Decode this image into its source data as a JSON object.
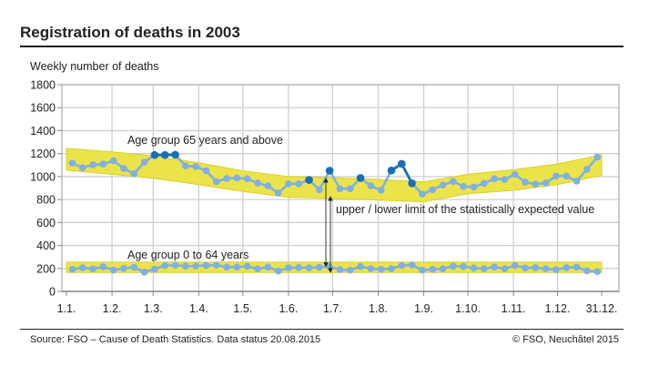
{
  "title": "Registration of deaths in 2003",
  "footer": {
    "source": "Source: FSO – Cause of Death Statistics. Data status 20.08.2015",
    "copyright": "© FSO, Neuchâtel 2015"
  },
  "chart_data": {
    "type": "line",
    "title": "Registration of deaths in 2003",
    "ylabel": "Weekly number of deaths",
    "xlabel": "",
    "ylim": [
      0,
      1800
    ],
    "yticks": [
      0,
      200,
      400,
      600,
      800,
      1000,
      1200,
      1400,
      1600,
      1800
    ],
    "xlim": [
      "2003-01-01",
      "2003-12-31"
    ],
    "xticks": [
      {
        "date": "2003-01-01",
        "label": "1.1."
      },
      {
        "date": "2003-02-01",
        "label": "1.2."
      },
      {
        "date": "2003-03-01",
        "label": "1.3."
      },
      {
        "date": "2003-04-01",
        "label": "1.4."
      },
      {
        "date": "2003-05-01",
        "label": "1.5."
      },
      {
        "date": "2003-06-01",
        "label": "1.6."
      },
      {
        "date": "2003-07-01",
        "label": "1.7."
      },
      {
        "date": "2003-08-01",
        "label": "1.8."
      },
      {
        "date": "2003-09-01",
        "label": "1.9."
      },
      {
        "date": "2003-10-01",
        "label": "1.10."
      },
      {
        "date": "2003-11-01",
        "label": "1.11."
      },
      {
        "date": "2003-12-01",
        "label": "1.12."
      },
      {
        "date": "2003-12-31",
        "label": "31.12."
      }
    ],
    "grid": true,
    "colors": {
      "band": "#ebe34a",
      "line": "#7eb0e4",
      "exceed": "#1b6db5",
      "grid": "#cfcfcf"
    },
    "x": [
      "2003-01-05",
      "2003-01-12",
      "2003-01-19",
      "2003-01-26",
      "2003-02-02",
      "2003-02-09",
      "2003-02-16",
      "2003-02-23",
      "2003-03-02",
      "2003-03-09",
      "2003-03-16",
      "2003-03-23",
      "2003-03-30",
      "2003-04-06",
      "2003-04-13",
      "2003-04-20",
      "2003-04-27",
      "2003-05-04",
      "2003-05-11",
      "2003-05-18",
      "2003-05-25",
      "2003-06-01",
      "2003-06-08",
      "2003-06-15",
      "2003-06-22",
      "2003-06-29",
      "2003-07-06",
      "2003-07-13",
      "2003-07-20",
      "2003-07-27",
      "2003-08-03",
      "2003-08-10",
      "2003-08-17",
      "2003-08-24",
      "2003-08-31",
      "2003-09-07",
      "2003-09-14",
      "2003-09-21",
      "2003-09-28",
      "2003-10-05",
      "2003-10-12",
      "2003-10-19",
      "2003-10-26",
      "2003-11-02",
      "2003-11-09",
      "2003-11-16",
      "2003-11-23",
      "2003-11-30",
      "2003-12-07",
      "2003-12-14",
      "2003-12-21",
      "2003-12-28"
    ],
    "series": [
      {
        "name": "Age group 65 years and above",
        "values": [
          1117,
          1077,
          1103,
          1109,
          1138,
          1071,
          1024,
          1125,
          1188,
          1188,
          1190,
          1093,
          1087,
          1051,
          956,
          983,
          988,
          981,
          943,
          919,
          857,
          937,
          937,
          971,
          886,
          1051,
          894,
          894,
          988,
          919,
          881,
          1053,
          1111,
          941,
          847,
          886,
          926,
          958,
          913,
          909,
          941,
          981,
          975,
          1019,
          952,
          934,
          944,
          1005,
          1005,
          960,
          1063,
          1169
        ],
        "above_expected": [
          8,
          9,
          10,
          23,
          25,
          28,
          31,
          32,
          33
        ],
        "expected_band": {
          "dates": [
            "2003-01-01",
            "2003-02-01",
            "2003-03-01",
            "2003-04-01",
            "2003-05-01",
            "2003-06-01",
            "2003-07-01",
            "2003-08-01",
            "2003-09-01",
            "2003-10-01",
            "2003-11-01",
            "2003-12-01",
            "2003-12-31"
          ],
          "upper": [
            1245,
            1215,
            1180,
            1120,
            1050,
            1000,
            990,
            975,
            955,
            1020,
            1060,
            1110,
            1190
          ],
          "lower": [
            1055,
            1020,
            985,
            930,
            870,
            820,
            810,
            795,
            780,
            850,
            880,
            930,
            1010
          ]
        }
      },
      {
        "name": "Age group 0 to 64 years",
        "values": [
          193,
          206,
          196,
          214,
          186,
          201,
          210,
          168,
          194,
          225,
          228,
          220,
          221,
          226,
          229,
          212,
          212,
          219,
          196,
          212,
          178,
          206,
          208,
          206,
          210,
          215,
          190,
          185,
          217,
          198,
          193,
          198,
          225,
          230,
          185,
          193,
          198,
          220,
          217,
          204,
          198,
          212,
          198,
          225,
          204,
          207,
          198,
          190,
          207,
          212,
          180,
          172
        ],
        "above_expected": [],
        "expected_band": {
          "dates": [
            "2003-01-01",
            "2003-12-31"
          ],
          "upper": [
            255,
            255
          ],
          "lower": [
            165,
            165
          ]
        }
      }
    ],
    "annotations": [
      {
        "text": "Age group 65 years and above",
        "series": 0
      },
      {
        "text": "Age group 0 to 64 years",
        "series": 1
      },
      {
        "text": "upper / lower limit of the statistically expected value"
      }
    ]
  }
}
